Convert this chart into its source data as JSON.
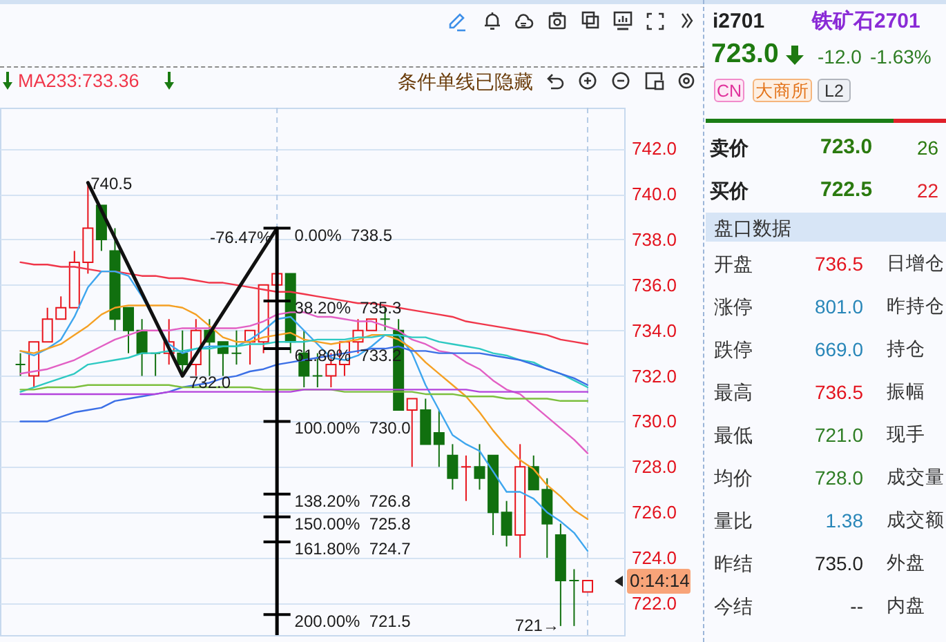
{
  "chart_data": [
    {
      "type": "candlestick",
      "categories": [
        null,
        null,
        null,
        null,
        null,
        null,
        null,
        null,
        null,
        null,
        null,
        null,
        null,
        null,
        null,
        null,
        null,
        null,
        null,
        null,
        null,
        null,
        null,
        null,
        null,
        null,
        null,
        null,
        null,
        null,
        null,
        null,
        null,
        null,
        null,
        null,
        null,
        null,
        null,
        null,
        null,
        null,
        null
      ],
      "ohlc": [
        [
          732.5,
          733.0,
          732.0,
          732.5
        ],
        [
          732.0,
          733.5,
          731.5,
          733.5
        ],
        [
          733.5,
          735.0,
          733.5,
          734.5
        ],
        [
          734.5,
          735.5,
          734.5,
          735.0
        ],
        [
          735.0,
          737.5,
          735.0,
          737.0
        ],
        [
          737.0,
          740.5,
          736.5,
          738.5
        ],
        [
          739.5,
          739.5,
          737.5,
          738.0
        ],
        [
          737.5,
          738.5,
          734.0,
          734.5
        ],
        [
          735.0,
          735.0,
          733.0,
          734.0
        ],
        [
          734.0,
          734.5,
          732.0,
          733.0
        ],
        [
          733.0,
          733.0,
          732.0,
          733.0
        ],
        [
          733.0,
          734.5,
          732.5,
          733.5
        ],
        [
          733.0,
          734.0,
          732.0,
          732.5
        ],
        [
          732.5,
          734.5,
          732.0,
          734.0
        ],
        [
          734.0,
          734.5,
          732.0,
          733.5
        ],
        [
          733.5,
          733.5,
          732.0,
          733.0
        ],
        [
          733.0,
          734.0,
          732.5,
          733.0
        ],
        [
          733.5,
          734.0,
          732.5,
          734.0
        ],
        [
          733.5,
          736.0,
          733.0,
          736.0
        ],
        [
          736.0,
          736.5,
          736.0,
          736.5
        ],
        [
          736.5,
          736.5,
          733.0,
          733.5
        ],
        [
          733.0,
          734.0,
          731.5,
          732.0
        ],
        [
          732.0,
          733.0,
          731.5,
          732.0
        ],
        [
          732.0,
          733.0,
          731.5,
          732.5
        ],
        [
          732.5,
          733.5,
          732.0,
          733.5
        ],
        [
          733.5,
          734.5,
          733.0,
          734.0
        ],
        [
          734.0,
          734.5,
          734.0,
          734.5
        ],
        [
          734.5,
          735.0,
          734.0,
          734.5
        ],
        [
          734.0,
          734.5,
          730.5,
          730.5
        ],
        [
          730.5,
          731.0,
          728.0,
          731.0
        ],
        [
          730.5,
          731.0,
          729.0,
          729.0
        ],
        [
          729.5,
          730.5,
          728.0,
          729.0
        ],
        [
          728.5,
          729.0,
          727.0,
          727.5
        ],
        [
          728.0,
          728.5,
          726.5,
          728.0
        ],
        [
          728.0,
          729.0,
          727.0,
          727.5
        ],
        [
          728.5,
          728.5,
          725.0,
          726.0
        ],
        [
          726.0,
          726.5,
          724.5,
          725.0
        ],
        [
          725.0,
          729.0,
          724.0,
          728.0
        ],
        [
          728.0,
          728.5,
          727.0,
          727.0
        ],
        [
          727.0,
          727.5,
          724.0,
          725.5
        ],
        [
          725.0,
          725.5,
          721.0,
          723.0
        ],
        [
          723.0,
          723.5,
          721.0,
          723.0
        ],
        [
          722.5,
          723.0,
          722.5,
          723.0
        ]
      ],
      "series": [
        {
          "type": "line",
          "name": "MA233:733.36",
          "color": "#f0364a",
          "values": [
            737.0,
            736.9,
            736.9,
            736.8,
            736.8,
            736.7,
            736.6,
            736.6,
            736.5,
            736.4,
            736.4,
            736.3,
            736.3,
            736.2,
            736.1,
            736.1,
            736.0,
            735.9,
            735.8,
            735.7,
            735.7,
            735.6,
            735.5,
            735.4,
            735.3,
            735.2,
            735.2,
            735.1,
            735.0,
            734.9,
            734.8,
            734.7,
            734.6,
            734.4,
            734.3,
            734.2,
            734.1,
            734.0,
            733.9,
            733.8,
            733.6,
            733.5,
            733.4
          ]
        },
        {
          "type": "line",
          "color": "#3ea6ee",
          "values": [
            733.1,
            732.9,
            733.2,
            733.6,
            734.6,
            735.9,
            736.6,
            736.6,
            736.4,
            735.5,
            734.4,
            733.4,
            733.0,
            733.2,
            733.3,
            733.3,
            733.3,
            733.6,
            734.0,
            734.5,
            734.6,
            734.0,
            733.4,
            732.8,
            732.7,
            732.9,
            733.3,
            733.8,
            733.8,
            733.0,
            731.6,
            730.5,
            729.4,
            729.0,
            728.7,
            727.8,
            726.9,
            726.9,
            726.6,
            726.0,
            725.6,
            725.1,
            724.3
          ]
        },
        {
          "type": "line",
          "color": "#f5a023",
          "values": [
            733.1,
            733.0,
            733.2,
            733.4,
            733.8,
            734.2,
            734.7,
            735.0,
            735.1,
            735.1,
            735.1,
            735.1,
            735.0,
            734.7,
            734.2,
            733.7,
            733.5,
            733.5,
            733.7,
            733.8,
            733.9,
            733.6,
            733.5,
            733.4,
            733.5,
            733.6,
            733.8,
            733.8,
            733.6,
            733.2,
            732.6,
            732.1,
            731.6,
            731.1,
            730.4,
            729.6,
            728.9,
            728.3,
            727.9,
            727.2,
            726.7,
            726.1,
            725.7
          ]
        },
        {
          "type": "line",
          "color": "#e25fc4",
          "values": [
            732.1,
            732.2,
            732.3,
            732.5,
            732.7,
            733.0,
            733.3,
            733.6,
            733.8,
            734.0,
            734.0,
            734.0,
            734.1,
            734.1,
            734.1,
            734.1,
            734.1,
            734.2,
            734.4,
            734.7,
            734.8,
            734.8,
            734.6,
            734.6,
            734.5,
            734.4,
            734.4,
            734.2,
            734.0,
            733.6,
            733.4,
            733.1,
            733.0,
            732.6,
            732.3,
            731.8,
            731.4,
            731.2,
            730.7,
            730.2,
            729.7,
            729.2,
            728.6
          ]
        },
        {
          "type": "line",
          "color": "#2ec9c2",
          "values": [
            731.3,
            731.5,
            731.7,
            731.9,
            732.1,
            732.5,
            732.6,
            732.7,
            732.8,
            733.0,
            733.0,
            733.1,
            733.1,
            733.2,
            733.2,
            733.3,
            733.3,
            733.4,
            733.4,
            733.5,
            733.5,
            733.5,
            733.6,
            733.6,
            733.6,
            733.7,
            733.7,
            733.8,
            733.8,
            733.7,
            733.7,
            733.5,
            733.4,
            733.3,
            733.2,
            733.0,
            732.9,
            732.7,
            732.6,
            732.3,
            732.1,
            731.8,
            731.5
          ]
        },
        {
          "type": "line",
          "color": "#3b6fe6",
          "values": [
            730.0,
            730.0,
            730.0,
            730.2,
            730.4,
            730.5,
            730.6,
            730.9,
            731.0,
            731.1,
            731.2,
            731.3,
            731.5,
            731.6,
            731.7,
            731.9,
            732.0,
            732.2,
            732.3,
            732.5,
            732.6,
            732.7,
            732.8,
            732.9,
            733.0,
            733.1,
            733.2,
            733.2,
            733.3,
            733.1,
            733.1,
            733.0,
            733.0,
            733.0,
            733.0,
            732.9,
            732.8,
            732.7,
            732.5,
            732.3,
            732.1,
            731.9,
            731.6
          ]
        },
        {
          "type": "line",
          "color": "#7cbf3e",
          "values": [
            731.4,
            731.4,
            731.5,
            731.5,
            731.5,
            731.6,
            731.6,
            731.6,
            731.6,
            731.6,
            731.6,
            731.6,
            731.5,
            731.5,
            731.5,
            731.5,
            731.5,
            731.5,
            731.4,
            731.4,
            731.4,
            731.4,
            731.4,
            731.4,
            731.3,
            731.3,
            731.3,
            731.3,
            731.3,
            731.3,
            731.2,
            731.2,
            731.2,
            731.1,
            731.1,
            731.1,
            731.0,
            731.0,
            731.0,
            731.0,
            730.9,
            730.9,
            730.9
          ]
        },
        {
          "type": "line",
          "color": "#b443dc",
          "values": [
            731.2,
            731.2,
            731.2,
            731.2,
            731.2,
            731.2,
            731.2,
            731.2,
            731.2,
            731.2,
            731.2,
            731.3,
            731.3,
            731.3,
            731.3,
            731.3,
            731.3,
            731.3,
            731.3,
            731.3,
            731.3,
            731.4,
            731.4,
            731.4,
            731.4,
            731.4,
            731.4,
            731.4,
            731.4,
            731.4,
            731.4,
            731.4,
            731.4,
            731.4,
            731.3,
            731.3,
            731.3,
            731.3,
            731.3,
            731.3,
            731.3,
            731.3,
            731.3
          ]
        },
        {
          "type": "line",
          "color": "#111111",
          "values": [
            null,
            null,
            null,
            null,
            null,
            740.5,
            null,
            null,
            null,
            null,
            null,
            null,
            732.0,
            null,
            null,
            null,
            null,
            null,
            null,
            738.5,
            null,
            null,
            null,
            null,
            null,
            null,
            null,
            null,
            null,
            null,
            null,
            null,
            null,
            null,
            null,
            null,
            null,
            null,
            null,
            null,
            null,
            null,
            null
          ]
        }
      ],
      "ylim": [
        720.6,
        743.8
      ],
      "yticks": [
        {
          "value": 722,
          "label": "722.0"
        },
        {
          "value": 724,
          "label": "724.0"
        },
        {
          "value": 726,
          "label": "726.0"
        },
        {
          "value": 728,
          "label": "728.0"
        },
        {
          "value": 730,
          "label": "730.0"
        },
        {
          "value": 732,
          "label": "732.0"
        },
        {
          "value": 734,
          "label": "734.0"
        },
        {
          "value": 736,
          "label": "736.0"
        },
        {
          "value": 738,
          "label": "738.0"
        },
        {
          "value": 740,
          "label": "740.0"
        },
        {
          "value": 742,
          "label": "742.0"
        }
      ],
      "grid": "y",
      "legend": "top left",
      "ref_lines": [
        {
          "axis": "y",
          "value": 738.5,
          "label": "0.00%  738.5"
        },
        {
          "axis": "y",
          "value": 735.3,
          "label": "38.20%  735.3"
        },
        {
          "axis": "y",
          "value": 733.2,
          "label": "61.80%  733.2"
        },
        {
          "axis": "y",
          "value": 730.0,
          "label": "100.00%  730.0"
        },
        {
          "axis": "y",
          "value": 726.8,
          "label": "138.20%  726.8"
        },
        {
          "axis": "y",
          "value": 725.8,
          "label": "150.00%  725.8"
        },
        {
          "axis": "y",
          "value": 724.7,
          "label": "161.80%  724.7"
        },
        {
          "axis": "y",
          "value": 721.5,
          "label": "200.00%  721.5"
        }
      ],
      "annotations": [
        "740.5",
        "732.0",
        "-76.47%",
        "721→",
        "0:14:14",
        "条件单线已隐藏"
      ]
    },
    {
      "type": "other",
      "title": "i2701",
      "subtitle": "铁矿石2701",
      "annotations": [
        "723.0",
        "-12.0",
        "-1.63%",
        "CN",
        "大商所",
        "L2",
        "卖价",
        "723.0",
        "26",
        "买价",
        "722.5",
        "22",
        "盘口数据",
        "开盘",
        "736.5",
        "日增仓",
        "涨停",
        "801.0",
        "昨持仓",
        "跌停",
        "669.0",
        "持仓",
        "最高",
        "736.5",
        "振幅",
        "最低",
        "721.0",
        "现手",
        "均价",
        "728.0",
        "成交量",
        "量比",
        "1.38",
        "成交额",
        "昨结",
        "735.0",
        "外盘",
        "今结",
        "--",
        "内盘"
      ]
    }
  ]
}
